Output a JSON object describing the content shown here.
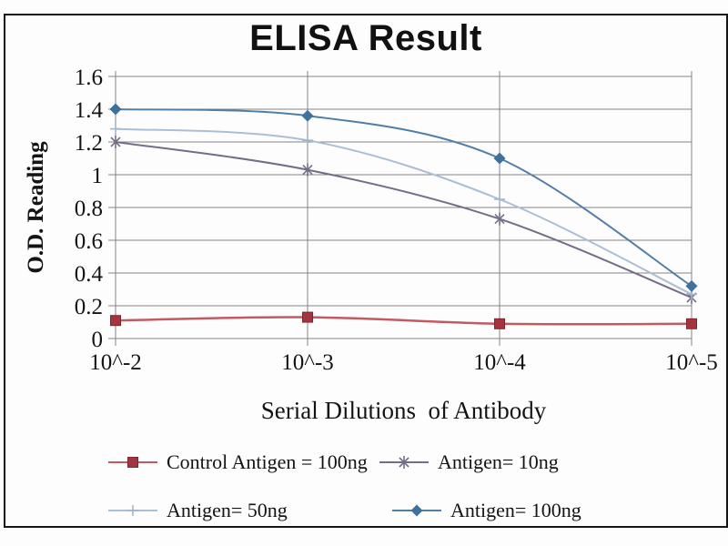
{
  "chart_data": {
    "type": "line",
    "title": "ELISA Result",
    "xlabel": "Serial Dilutions  of Antibody",
    "ylabel": "O.D. Reading",
    "categories": [
      "10^-2",
      "10^-3",
      "10^-4",
      "10^-5"
    ],
    "ylim": [
      0,
      1.6
    ],
    "ytick_step": 0.2,
    "grid": true,
    "legend_position": "bottom",
    "colors": {
      "gridline": "#858585",
      "frame": "#161616",
      "text": "#141414"
    },
    "series": [
      {
        "key": "control-antigen-100ng",
        "name": "Control Antigen = 100ng",
        "marker": "square",
        "color": "#c25a60",
        "marker_color": "#a33540",
        "marker_edge": "#7e2530",
        "line_width": 2.5,
        "values": [
          0.11,
          0.13,
          0.09,
          0.09
        ]
      },
      {
        "key": "antigen-10ng",
        "name": "Antigen= 10ng",
        "marker": "star",
        "color": "#756d88",
        "marker_color": "#756d88",
        "line_width": 2,
        "values": [
          1.2,
          1.03,
          0.73,
          0.25
        ]
      },
      {
        "key": "antigen-50ng",
        "name": "Antigen= 50ng",
        "marker": "plus",
        "color": "#aabfd4",
        "marker_color": "#9fb6cc",
        "line_width": 2,
        "values": [
          1.28,
          1.21,
          0.85,
          0.27
        ]
      },
      {
        "key": "antigen-100ng",
        "name": "Antigen= 100ng",
        "marker": "diamond",
        "color": "#4f7ea8",
        "marker_color": "#3f719b",
        "line_width": 2,
        "values": [
          1.4,
          1.36,
          1.1,
          0.32
        ]
      }
    ]
  }
}
